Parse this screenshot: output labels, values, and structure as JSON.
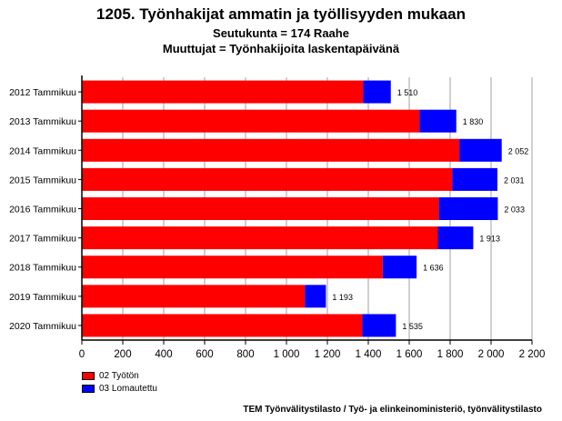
{
  "title": "1205. Työnhakijat ammatin ja työllisyyden mukaan",
  "subtitle1": "Seutukunta = 174 Raahe",
  "subtitle2": "Muuttujat = Työnhakijoita laskentapäivänä",
  "footer": "TEM Työnvälitystilasto / Työ- ja elinkeinoministeriö, työnvälitystilasto",
  "colors": {
    "tyoton": "#ff0000",
    "lomautettu": "#0000ff",
    "grid": "#a0a0a0"
  },
  "chart_data": {
    "type": "bar",
    "orientation": "horizontal",
    "stacked": true,
    "categories": [
      "2012 Tammikuu",
      "2013 Tammikuu",
      "2014 Tammikuu",
      "2015 Tammikuu",
      "2016 Tammikuu",
      "2017 Tammikuu",
      "2018 Tammikuu",
      "2019 Tammikuu",
      "2020 Tammikuu"
    ],
    "series": [
      {
        "name": "02 Työtön",
        "values": [
          1375,
          1650,
          1845,
          1810,
          1745,
          1740,
          1470,
          1090,
          1370
        ]
      },
      {
        "name": "03 Lomautettu",
        "values": [
          135,
          180,
          207,
          221,
          288,
          173,
          166,
          103,
          165
        ]
      }
    ],
    "totals": [
      1510,
      1830,
      2052,
      2031,
      2033,
      1913,
      1636,
      1193,
      1535
    ],
    "total_labels": [
      "1 510",
      "1 830",
      "2 052",
      "2 031",
      "2 033",
      "1 913",
      "1 636",
      "1 193",
      "1 535"
    ],
    "xlim": [
      0,
      2200
    ],
    "xticks": [
      0,
      200,
      400,
      600,
      800,
      1000,
      1200,
      1400,
      1600,
      1800,
      2000,
      2200
    ],
    "xtick_labels": [
      "0",
      "200",
      "400",
      "600",
      "800",
      "1 000",
      "1 200",
      "1 400",
      "1 600",
      "1 800",
      "2 000",
      "2 200"
    ],
    "grid": "vertical",
    "legend_position": "bottom-left"
  }
}
